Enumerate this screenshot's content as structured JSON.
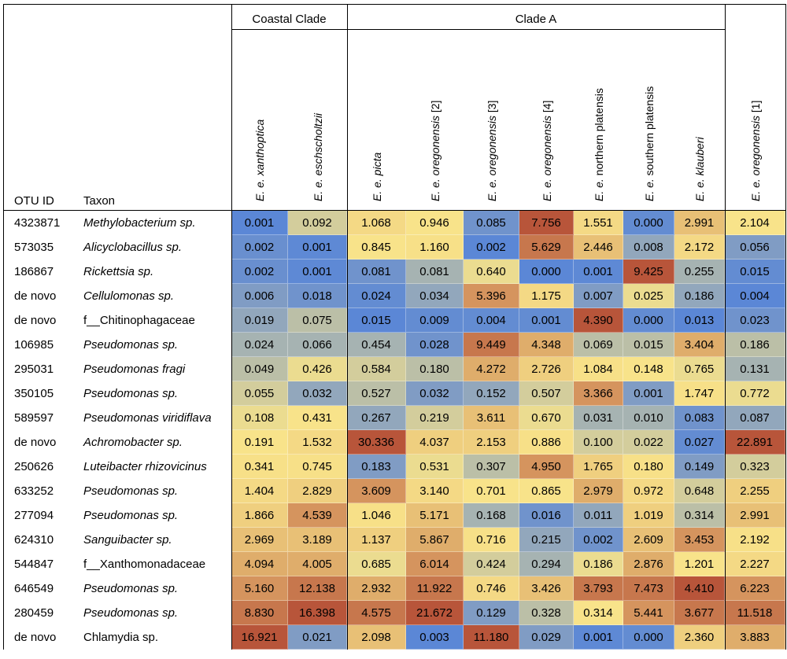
{
  "chart_data": {
    "type": "heatmap",
    "row_header_labels": {
      "otu": "OTU ID",
      "taxon": "Taxon"
    },
    "groups": [
      {
        "label": "Coastal Clade",
        "columns": [
          0,
          1
        ]
      },
      {
        "label": "Clade A",
        "columns": [
          2,
          3,
          4,
          5,
          6,
          7,
          8
        ]
      },
      {
        "label": "",
        "columns": [
          9
        ]
      }
    ],
    "columns": [
      {
        "italic": "E. e. xanthoptica",
        "plain": ""
      },
      {
        "italic": "E. e. eschscholtzii",
        "plain": ""
      },
      {
        "italic": "E. e. picta",
        "plain": ""
      },
      {
        "italic": "E. e. oregonensis",
        "plain": " [2]"
      },
      {
        "italic": "E. e. oregonensis",
        "plain": " [3]"
      },
      {
        "italic": "E. e. oregonensis",
        "plain": " [4]"
      },
      {
        "italic": "E. e.",
        "plain": " northern platensis"
      },
      {
        "italic": "E. e.",
        "plain": " southern platensis"
      },
      {
        "italic": "E. e. klauberi",
        "plain": ""
      },
      {
        "italic": "E. e. oregonensis",
        "plain": " [1]"
      }
    ],
    "rows": [
      {
        "otu": "4323871",
        "taxon": "Methylobacterium sp.",
        "italic": true,
        "values": [
          "0.001",
          "0.092",
          "1.068",
          "0.946",
          "0.085",
          "7.756",
          "1.551",
          "0.000",
          "2.991",
          "2.104"
        ]
      },
      {
        "otu": "573035",
        "taxon": "Alicyclobacillus sp.",
        "italic": true,
        "values": [
          "0.002",
          "0.001",
          "0.845",
          "1.160",
          "0.002",
          "5.629",
          "2.446",
          "0.008",
          "2.172",
          "0.056"
        ]
      },
      {
        "otu": "186867",
        "taxon": "Rickettsia sp.",
        "italic": true,
        "values": [
          "0.002",
          "0.001",
          "0.081",
          "0.081",
          "0.640",
          "0.000",
          "0.001",
          "9.425",
          "0.255",
          "0.015"
        ]
      },
      {
        "otu": "de novo",
        "taxon": "Cellulomonas sp.",
        "italic": true,
        "values": [
          "0.006",
          "0.018",
          "0.024",
          "0.034",
          "5.396",
          "1.175",
          "0.007",
          "0.025",
          "0.186",
          "0.004"
        ]
      },
      {
        "otu": "de novo",
        "taxon": "f__Chitinophagaceae",
        "italic": false,
        "values": [
          "0.019",
          "0.075",
          "0.015",
          "0.009",
          "0.004",
          "0.001",
          "4.390",
          "0.000",
          "0.013",
          "0.023"
        ]
      },
      {
        "otu": "106985",
        "taxon": "Pseudomonas sp.",
        "italic": true,
        "values": [
          "0.024",
          "0.066",
          "0.454",
          "0.028",
          "9.449",
          "4.348",
          "0.069",
          "0.015",
          "3.404",
          "0.186"
        ]
      },
      {
        "otu": "295031",
        "taxon": "Pseudomonas fragi",
        "italic": true,
        "values": [
          "0.049",
          "0.426",
          "0.584",
          "0.180",
          "4.272",
          "2.726",
          "1.084",
          "0.148",
          "0.765",
          "0.131"
        ]
      },
      {
        "otu": "350105",
        "taxon": "Pseudomonas sp.",
        "italic": true,
        "values": [
          "0.055",
          "0.032",
          "0.527",
          "0.032",
          "0.152",
          "0.507",
          "3.366",
          "0.001",
          "1.747",
          "0.772"
        ]
      },
      {
        "otu": "589597",
        "taxon": "Pseudomonas viridiflava",
        "italic": true,
        "values": [
          "0.108",
          "0.431",
          "0.267",
          "0.219",
          "3.611",
          "0.670",
          "0.031",
          "0.010",
          "0.083",
          "0.087"
        ]
      },
      {
        "otu": "de novo",
        "taxon": "Achromobacter sp.",
        "italic": true,
        "values": [
          "0.191",
          "1.532",
          "30.336",
          "4.037",
          "2.153",
          "0.886",
          "0.100",
          "0.022",
          "0.027",
          "22.891"
        ]
      },
      {
        "otu": "250626",
        "taxon": "Luteibacter rhizovicinus",
        "italic": true,
        "values": [
          "0.341",
          "0.745",
          "0.183",
          "0.531",
          "0.307",
          "4.950",
          "1.765",
          "0.180",
          "0.149",
          "0.323"
        ]
      },
      {
        "otu": "633252",
        "taxon": "Pseudomonas sp.",
        "italic": true,
        "values": [
          "1.404",
          "2.829",
          "3.609",
          "3.140",
          "0.701",
          "0.865",
          "2.979",
          "0.972",
          "0.648",
          "2.255"
        ]
      },
      {
        "otu": "277094",
        "taxon": "Pseudomonas sp.",
        "italic": true,
        "values": [
          "1.866",
          "4.539",
          "1.046",
          "5.171",
          "0.168",
          "0.016",
          "0.011",
          "1.019",
          "0.314",
          "2.991"
        ]
      },
      {
        "otu": "624310",
        "taxon": "Sanguibacter sp.",
        "italic": true,
        "values": [
          "2.969",
          "3.189",
          "1.137",
          "5.867",
          "0.716",
          "0.215",
          "0.002",
          "2.609",
          "3.453",
          "2.192"
        ]
      },
      {
        "otu": "544847",
        "taxon": "f__Xanthomonadaceae",
        "italic": false,
        "values": [
          "4.094",
          "4.005",
          "0.685",
          "6.014",
          "0.424",
          "0.294",
          "0.186",
          "2.876",
          "1.201",
          "2.227"
        ]
      },
      {
        "otu": "646549",
        "taxon": "Pseudomonas sp.",
        "italic": true,
        "values": [
          "5.160",
          "12.138",
          "2.932",
          "11.922",
          "0.746",
          "3.426",
          "3.793",
          "7.473",
          "4.410",
          "6.223"
        ]
      },
      {
        "otu": "280459",
        "taxon": "Pseudomonas sp.",
        "italic": true,
        "values": [
          "8.830",
          "16.398",
          "4.575",
          "21.672",
          "0.129",
          "0.328",
          "0.314",
          "5.441",
          "3.677",
          "11.518"
        ]
      },
      {
        "otu": "de novo",
        "taxon": "Chlamydia sp.",
        "italic": false,
        "values": [
          "16.921",
          "0.021",
          "2.098",
          "0.003",
          "11.180",
          "0.029",
          "0.001",
          "0.000",
          "2.360",
          "3.883"
        ]
      }
    ],
    "color_scale": {
      "low": "#5B87D6",
      "mid": "#F8E38A",
      "high": "#B8553A",
      "scaling": "per-column rank"
    },
    "title": "",
    "xlabel": "",
    "ylabel": ""
  }
}
